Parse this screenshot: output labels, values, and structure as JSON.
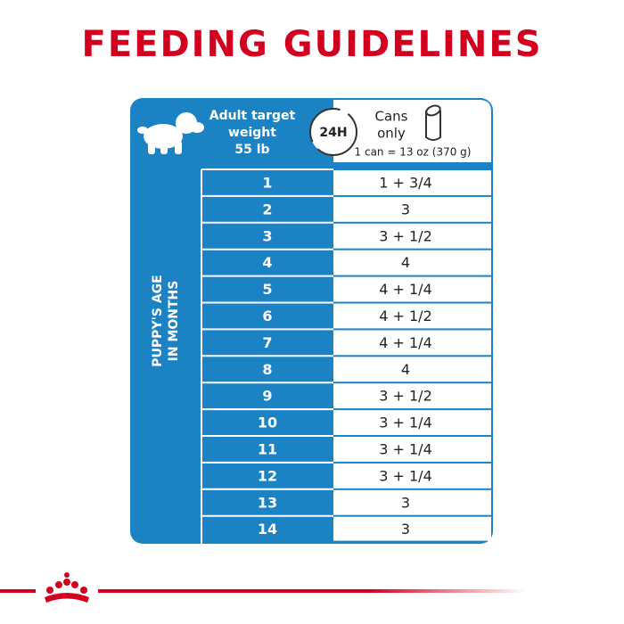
{
  "title": "FEEDING GUIDELINES",
  "header": {
    "weight_lines": [
      "Adult target",
      "weight",
      "55 lb"
    ],
    "period": "24H",
    "food_lines": [
      "Cans",
      "only"
    ],
    "can_size": "1 can = 13 oz (370 g)"
  },
  "side_label_lines": [
    "PUPPY'S AGE",
    "IN MONTHS"
  ],
  "table": {
    "rows": [
      [
        "1",
        "1 + 3/4"
      ],
      [
        "2",
        "3"
      ],
      [
        "3",
        "3 + 1/2"
      ],
      [
        "4",
        "4"
      ],
      [
        "5",
        "4 + 1/4"
      ],
      [
        "6",
        "4 + 1/2"
      ],
      [
        "7",
        "4 + 1/4"
      ],
      [
        "8",
        "4"
      ],
      [
        "9",
        "3 + 1/2"
      ],
      [
        "10",
        "3 + 1/4"
      ],
      [
        "11",
        "3 + 1/4"
      ],
      [
        "12",
        "3 + 1/4"
      ],
      [
        "13",
        "3"
      ],
      [
        "14",
        "3"
      ]
    ]
  }
}
